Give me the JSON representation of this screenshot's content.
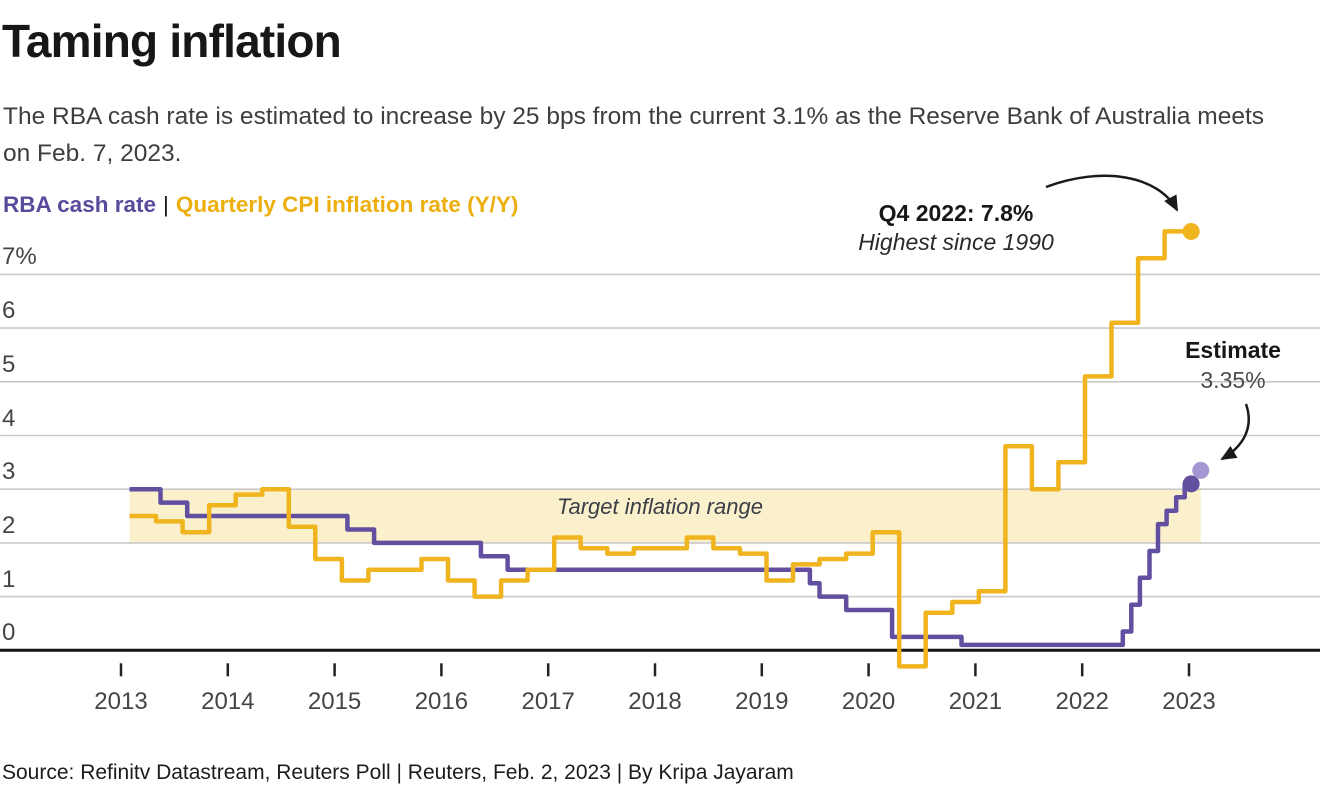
{
  "header": {
    "title": "Taming inflation",
    "subtitle": "The RBA cash rate is estimated to increase by 25 bps from the current 3.1% as the Reserve Bank of Australia meets on Feb. 7, 2023."
  },
  "legend": {
    "series1": "RBA cash rate",
    "separator": "|",
    "series2": "Quarterly CPI inflation rate (Y/Y)"
  },
  "annotations": {
    "peak": {
      "line1": "Q4 2022: 7.8%",
      "line2": "Highest since 1990"
    },
    "estimate": {
      "line1": "Estimate",
      "line2": "3.35%"
    },
    "band_label": "Target inflation range"
  },
  "source": "Source: Refinitv Datastream, Reuters Poll | Reuters, Feb. 2, 2023 | By Kripa Jayaram",
  "colors": {
    "purple": "#624FA0",
    "purple_light": "#A495D3",
    "gold": "#F0B41E",
    "gold_text": "#EDAF10",
    "purple_text": "#5B4A9B",
    "band_fill": "#FAF0CC",
    "grid": "#C9C9C9",
    "axis": "#141414",
    "arrow": "#1a1a1a"
  },
  "chart_data": {
    "type": "line",
    "line_style": "step",
    "title": "Taming inflation",
    "xlabel": "",
    "ylabel": "%",
    "x_ticks": [
      2013,
      2014,
      2015,
      2016,
      2017,
      2018,
      2019,
      2020,
      2021,
      2022,
      2023
    ],
    "y_ticks": [
      {
        "value": 7,
        "label": "7%"
      },
      {
        "value": 6,
        "label": "6"
      },
      {
        "value": 5,
        "label": "5"
      },
      {
        "value": 4,
        "label": "4"
      },
      {
        "value": 3,
        "label": "3"
      },
      {
        "value": 2,
        "label": "2"
      },
      {
        "value": 1,
        "label": "1"
      },
      {
        "value": 0,
        "label": "0"
      }
    ],
    "ylim": [
      -0.5,
      7.9
    ],
    "grid": true,
    "legend_position": "top-left",
    "target_band": {
      "from": 2,
      "to": 3,
      "label": "Target inflation range"
    },
    "series": [
      {
        "name": "RBA cash rate",
        "color_key": "purple",
        "start": 2013.08,
        "end": 2023.02,
        "initial_value": 3.0,
        "changes": [
          [
            2013.37,
            2.75
          ],
          [
            2013.62,
            2.5
          ],
          [
            2015.12,
            2.25
          ],
          [
            2015.37,
            2.0
          ],
          [
            2016.37,
            1.75
          ],
          [
            2016.62,
            1.5
          ],
          [
            2019.45,
            1.25
          ],
          [
            2019.54,
            1.0
          ],
          [
            2019.79,
            0.75
          ],
          [
            2020.22,
            0.25
          ],
          [
            2020.87,
            0.1
          ],
          [
            2022.38,
            0.35
          ],
          [
            2022.46,
            0.85
          ],
          [
            2022.54,
            1.35
          ],
          [
            2022.63,
            1.85
          ],
          [
            2022.71,
            2.35
          ],
          [
            2022.79,
            2.6
          ],
          [
            2022.88,
            2.85
          ],
          [
            2022.96,
            3.1
          ]
        ],
        "end_value": 3.1,
        "end_dot": true
      },
      {
        "name": "Quarterly CPI inflation rate (Y/Y)",
        "color_key": "gold",
        "start": 2013.08,
        "quarter_width": 0.2485,
        "first_quarter": "2013-Q1",
        "last_quarter": "2022-Q4",
        "values": [
          2.5,
          2.4,
          2.2,
          2.7,
          2.9,
          3.0,
          2.3,
          1.7,
          1.3,
          1.5,
          1.5,
          1.7,
          1.3,
          1.0,
          1.3,
          1.5,
          2.1,
          1.9,
          1.8,
          1.9,
          1.9,
          2.1,
          1.9,
          1.8,
          1.3,
          1.6,
          1.7,
          1.8,
          2.2,
          -0.3,
          0.7,
          0.9,
          1.1,
          3.8,
          3.0,
          3.5,
          5.1,
          6.1,
          7.3,
          7.8
        ],
        "end_value": 7.8,
        "end_dot": true
      }
    ],
    "estimate_point": {
      "x": 2023.11,
      "value": 3.35,
      "color_key": "purple_light"
    }
  }
}
